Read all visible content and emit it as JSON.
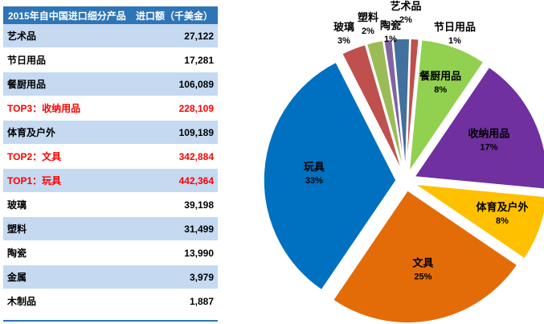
{
  "table": {
    "header": {
      "col1": "2015年自中国进口细分产品",
      "col2": "进口额（千美金）"
    },
    "rows": [
      {
        "label": "艺术品",
        "value": "27,122",
        "style": "alt",
        "highlight": false
      },
      {
        "label": "节日用品",
        "value": "17,281",
        "style": "white",
        "highlight": false
      },
      {
        "label": "餐厨用品",
        "value": "106,089",
        "style": "alt",
        "highlight": false
      },
      {
        "label": "TOP3：收纳用品",
        "value": "228,109",
        "style": "white",
        "highlight": true
      },
      {
        "label": "体育及户外",
        "value": "109,189",
        "style": "alt",
        "highlight": false
      },
      {
        "label": "TOP2：文具",
        "value": "342,884",
        "style": "white",
        "highlight": true
      },
      {
        "label": "TOP1：玩具",
        "value": "442,364",
        "style": "alt",
        "highlight": true
      },
      {
        "label": "玻璃",
        "value": "39,198",
        "style": "white",
        "highlight": false
      },
      {
        "label": "塑料",
        "value": "31,499",
        "style": "alt",
        "highlight": false
      },
      {
        "label": "陶瓷",
        "value": "13,990",
        "style": "white",
        "highlight": false
      },
      {
        "label": "金属",
        "value": "3,979",
        "style": "alt",
        "highlight": false
      },
      {
        "label": "木制品",
        "value": "1,887",
        "style": "white",
        "highlight": false
      }
    ]
  },
  "chart_data": {
    "type": "pie",
    "slices": [
      {
        "name": "艺术品",
        "percent": 2,
        "percent_label": "2%",
        "color": "#41719c"
      },
      {
        "name": "节日用品",
        "percent": 1,
        "percent_label": "1%",
        "color": "#c0504d"
      },
      {
        "name": "餐厨用品",
        "percent": 8,
        "percent_label": "8%",
        "color": "#92d050"
      },
      {
        "name": "收纳用品",
        "percent": 17,
        "percent_label": "17%",
        "color": "#7030a0"
      },
      {
        "name": "体育及户外",
        "percent": 8,
        "percent_label": "8%",
        "color": "#ffc000"
      },
      {
        "name": "文具",
        "percent": 25,
        "percent_label": "25%",
        "color": "#e36c09"
      },
      {
        "name": "玩具",
        "percent": 33,
        "percent_label": "33%",
        "color": "#0070c0"
      },
      {
        "name": "玻璃",
        "percent": 3,
        "percent_label": "3%",
        "color": "#c0504d"
      },
      {
        "name": "塑料",
        "percent": 2,
        "percent_label": "2%",
        "color": "#9bbb59"
      },
      {
        "name": "陶瓷",
        "percent": 1,
        "percent_label": "1%",
        "color": "#8064a2"
      }
    ]
  }
}
